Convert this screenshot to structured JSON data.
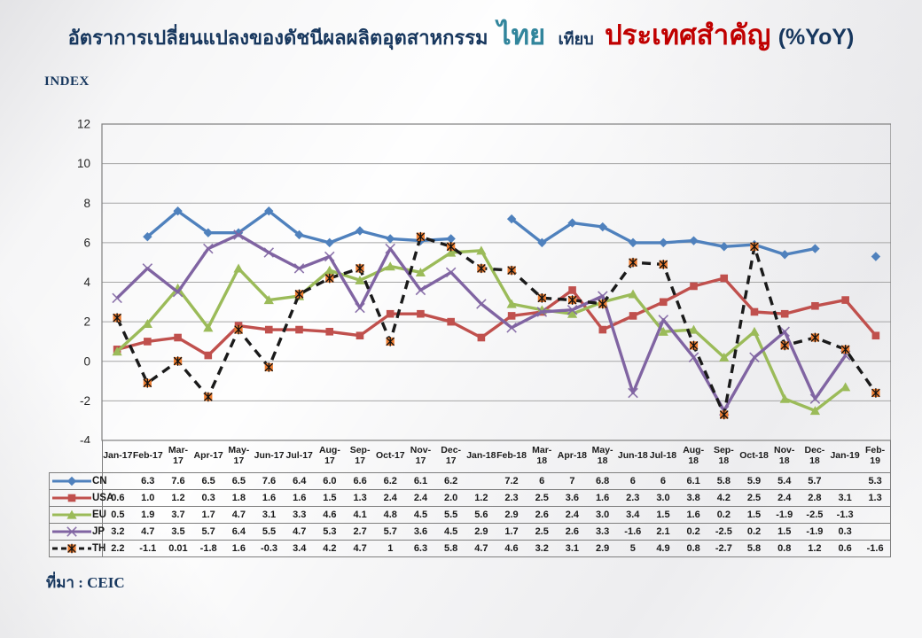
{
  "title": {
    "part1": "อัตราการเปลี่ยนแปลงของดัชนีผลผลิตอุตสาหกรรม",
    "thailand": "ไทย",
    "compare_word": "เทียบ",
    "countries": "ประเทศสำคัญ",
    "yoy": "(%YoY)",
    "colors": {
      "main": "#17375E",
      "thailand": "#31859C",
      "countries": "#C00000"
    }
  },
  "axis_label": "INDEX",
  "source": "ที่มา : CEIC",
  "chart_data": {
    "type": "line",
    "title": "อัตราการเปลี่ยนแปลงของดัชนีผลผลิตอุตสาหกรรม ไทย เทียบ ประเทศสำคัญ (%YoY)",
    "ylabel": "INDEX",
    "ylim": [
      -4,
      12
    ],
    "ytick_step": 2,
    "grid": true,
    "grid_color": "#A6A6A6",
    "frame_color": "#808080",
    "legend_position": "table-left",
    "categories": [
      "Jan-17",
      "Feb-17",
      "Mar-17",
      "Apr-17",
      "May-17",
      "Jun-17",
      "Jul-17",
      "Aug-17",
      "Sep-17",
      "Oct-17",
      "Nov-17",
      "Dec-17",
      "Jan-18",
      "Feb-18",
      "Mar-18",
      "Apr-18",
      "May-18",
      "Jun-18",
      "Jul-18",
      "Aug-18",
      "Sep-18",
      "Oct-18",
      "Nov-18",
      "Dec-18",
      "Jan-19",
      "Feb-19"
    ],
    "category_display": [
      "Jan-17",
      "Feb-17",
      "Mar-\n17",
      "Apr-17",
      "May-\n17",
      "Jun-17",
      "Jul-17",
      "Aug-17",
      "Sep-17",
      "Oct-17",
      "Nov-\n17",
      "Dec-17",
      "Jan-18",
      "Feb-18",
      "Mar-\n18",
      "Apr-18",
      "May-\n18",
      "Jun-18",
      "Jul-18",
      "Aug-18",
      "Sep-18",
      "Oct-18",
      "Nov-\n18",
      "Dec-18",
      "Jan-19",
      "Feb-19"
    ],
    "series": [
      {
        "name": "CN",
        "color": "#4F81BD",
        "marker": "diamond",
        "dash": null,
        "values": [
          "",
          "6.3",
          "7.6",
          "6.5",
          "6.5",
          "7.6",
          "6.4",
          "6.0",
          "6.6",
          "6.2",
          "6.1",
          "6.2",
          "",
          "7.2",
          "6",
          "7",
          "6.8",
          "6",
          "6",
          "6.1",
          "5.8",
          "5.9",
          "5.4",
          "5.7",
          "",
          "5.3"
        ]
      },
      {
        "name": "USA",
        "color": "#C0504D",
        "marker": "square",
        "dash": null,
        "values": [
          "0.6",
          "1.0",
          "1.2",
          "0.3",
          "1.8",
          "1.6",
          "1.6",
          "1.5",
          "1.3",
          "2.4",
          "2.4",
          "2.0",
          "1.2",
          "2.3",
          "2.5",
          "3.6",
          "1.6",
          "2.3",
          "3.0",
          "3.8",
          "4.2",
          "2.5",
          "2.4",
          "2.8",
          "3.1",
          "1.3"
        ]
      },
      {
        "name": "EU",
        "color": "#9BBB59",
        "marker": "triangle",
        "dash": null,
        "values": [
          "0.5",
          "1.9",
          "3.7",
          "1.7",
          "4.7",
          "3.1",
          "3.3",
          "4.6",
          "4.1",
          "4.8",
          "4.5",
          "5.5",
          "5.6",
          "2.9",
          "2.6",
          "2.4",
          "3.0",
          "3.4",
          "1.5",
          "1.6",
          "0.2",
          "1.5",
          "-1.9",
          "-2.5",
          "-1.3",
          ""
        ]
      },
      {
        "name": "JP",
        "color": "#8064A2",
        "marker": "xcross",
        "dash": null,
        "values": [
          "3.2",
          "4.7",
          "3.5",
          "5.7",
          "6.4",
          "5.5",
          "4.7",
          "5.3",
          "2.7",
          "5.7",
          "3.6",
          "4.5",
          "2.9",
          "1.7",
          "2.5",
          "2.6",
          "3.3",
          "-1.6",
          "2.1",
          "0.2",
          "-2.5",
          "0.2",
          "1.5",
          "-1.9",
          "0.3",
          ""
        ]
      },
      {
        "name": "TH",
        "color": "#1a1a1a",
        "marker": "star",
        "marker_color": "#ED7D31",
        "dash": "10 7",
        "values": [
          "2.2",
          "-1.1",
          "0.01",
          "-1.8",
          "1.6",
          "-0.3",
          "3.4",
          "4.2",
          "4.7",
          "1",
          "6.3",
          "5.8",
          "4.7",
          "4.6",
          "3.2",
          "3.1",
          "2.9",
          "5",
          "4.9",
          "0.8",
          "-2.7",
          "5.8",
          "0.8",
          "1.2",
          "0.6",
          "-1.6"
        ]
      }
    ]
  }
}
